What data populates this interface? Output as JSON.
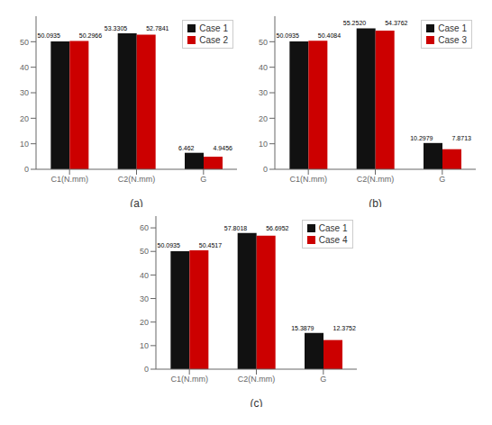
{
  "chart_data": [
    {
      "type": "bar",
      "xlabel": "(a)",
      "categories": [
        "C1(N.mm)",
        "C2(N.mm)",
        "G"
      ],
      "series": [
        {
          "name": "Case 1",
          "color": "#111111",
          "values": [
            50.0935,
            53.3305,
            6.462
          ],
          "value_labels": [
            "50.0935",
            "53.3305",
            "6.462"
          ]
        },
        {
          "name": "Case 2",
          "color": "#cc0000",
          "values": [
            50.2966,
            52.7841,
            4.9456
          ],
          "value_labels": [
            "50.2966",
            "52.7841",
            "4.9456"
          ]
        }
      ],
      "ylim": [
        0,
        60
      ],
      "yticks": [
        0,
        10,
        20,
        30,
        40,
        50
      ],
      "legend": "upper right",
      "data_labels": true,
      "grid": false
    },
    {
      "type": "bar",
      "xlabel": "(b)",
      "categories": [
        "C1(N.mm)",
        "C2(N.mm)",
        "G"
      ],
      "series": [
        {
          "name": "Case 1",
          "color": "#111111",
          "values": [
            50.0935,
            55.252,
            10.2979
          ],
          "value_labels": [
            "50.0935",
            "55.2520",
            "10.2979"
          ]
        },
        {
          "name": "Case 3",
          "color": "#cc0000",
          "values": [
            50.4084,
            54.3762,
            7.8713
          ],
          "value_labels": [
            "50.4084",
            "54.3762",
            "7.8713"
          ]
        }
      ],
      "ylim": [
        0,
        60
      ],
      "yticks": [
        0,
        10,
        20,
        30,
        40,
        50
      ],
      "legend": "upper right",
      "data_labels": true,
      "grid": false
    },
    {
      "type": "bar",
      "xlabel": "(c)",
      "categories": [
        "C1(N.mm)",
        "C2(N.mm)",
        "G"
      ],
      "series": [
        {
          "name": "Case 1",
          "color": "#111111",
          "values": [
            50.0935,
            57.8018,
            15.3879
          ],
          "value_labels": [
            "50.0935",
            "57.8018",
            "15.3879"
          ]
        },
        {
          "name": "Case 4",
          "color": "#cc0000",
          "values": [
            50.4517,
            56.6952,
            12.3752
          ],
          "value_labels": [
            "50.4517",
            "56.6952",
            "12.3752"
          ]
        }
      ],
      "ylim": [
        0,
        65
      ],
      "yticks": [
        0,
        10,
        20,
        30,
        40,
        50,
        60
      ],
      "legend": "upper right",
      "data_labels": true,
      "grid": false
    }
  ]
}
